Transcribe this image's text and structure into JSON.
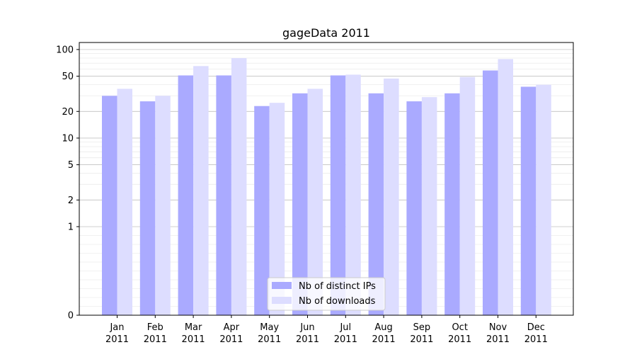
{
  "chart_data": {
    "type": "bar",
    "title": "gageData 2011",
    "xlabel": "",
    "ylabel": "",
    "categories": [
      {
        "month": "Jan",
        "year": "2011"
      },
      {
        "month": "Feb",
        "year": "2011"
      },
      {
        "month": "Mar",
        "year": "2011"
      },
      {
        "month": "Apr",
        "year": "2011"
      },
      {
        "month": "May",
        "year": "2011"
      },
      {
        "month": "Jun",
        "year": "2011"
      },
      {
        "month": "Jul",
        "year": "2011"
      },
      {
        "month": "Aug",
        "year": "2011"
      },
      {
        "month": "Sep",
        "year": "2011"
      },
      {
        "month": "Oct",
        "year": "2011"
      },
      {
        "month": "Nov",
        "year": "2011"
      },
      {
        "month": "Dec",
        "year": "2011"
      }
    ],
    "series": [
      {
        "name": "Nb of distinct IPs",
        "color": "#aaaaff",
        "values": [
          30,
          26,
          51,
          51,
          23,
          32,
          51,
          32,
          26,
          32,
          58,
          38
        ]
      },
      {
        "name": "Nb of downloads",
        "color": "#ddddff",
        "values": [
          36,
          30,
          65,
          80,
          25,
          36,
          52,
          47,
          29,
          49,
          78,
          40
        ]
      }
    ],
    "y_scale": "symlog",
    "ylim": [
      0,
      120
    ],
    "y_ticks": [
      {
        "value": 0,
        "label": "0"
      },
      {
        "value": 1,
        "label": "1"
      },
      {
        "value": 2,
        "label": "2"
      },
      {
        "value": 5,
        "label": "5"
      },
      {
        "value": 10,
        "label": "10"
      },
      {
        "value": 20,
        "label": "20"
      },
      {
        "value": 50,
        "label": "50"
      },
      {
        "value": 100,
        "label": "100"
      }
    ],
    "grid": true,
    "legend_position": "lower-center"
  }
}
